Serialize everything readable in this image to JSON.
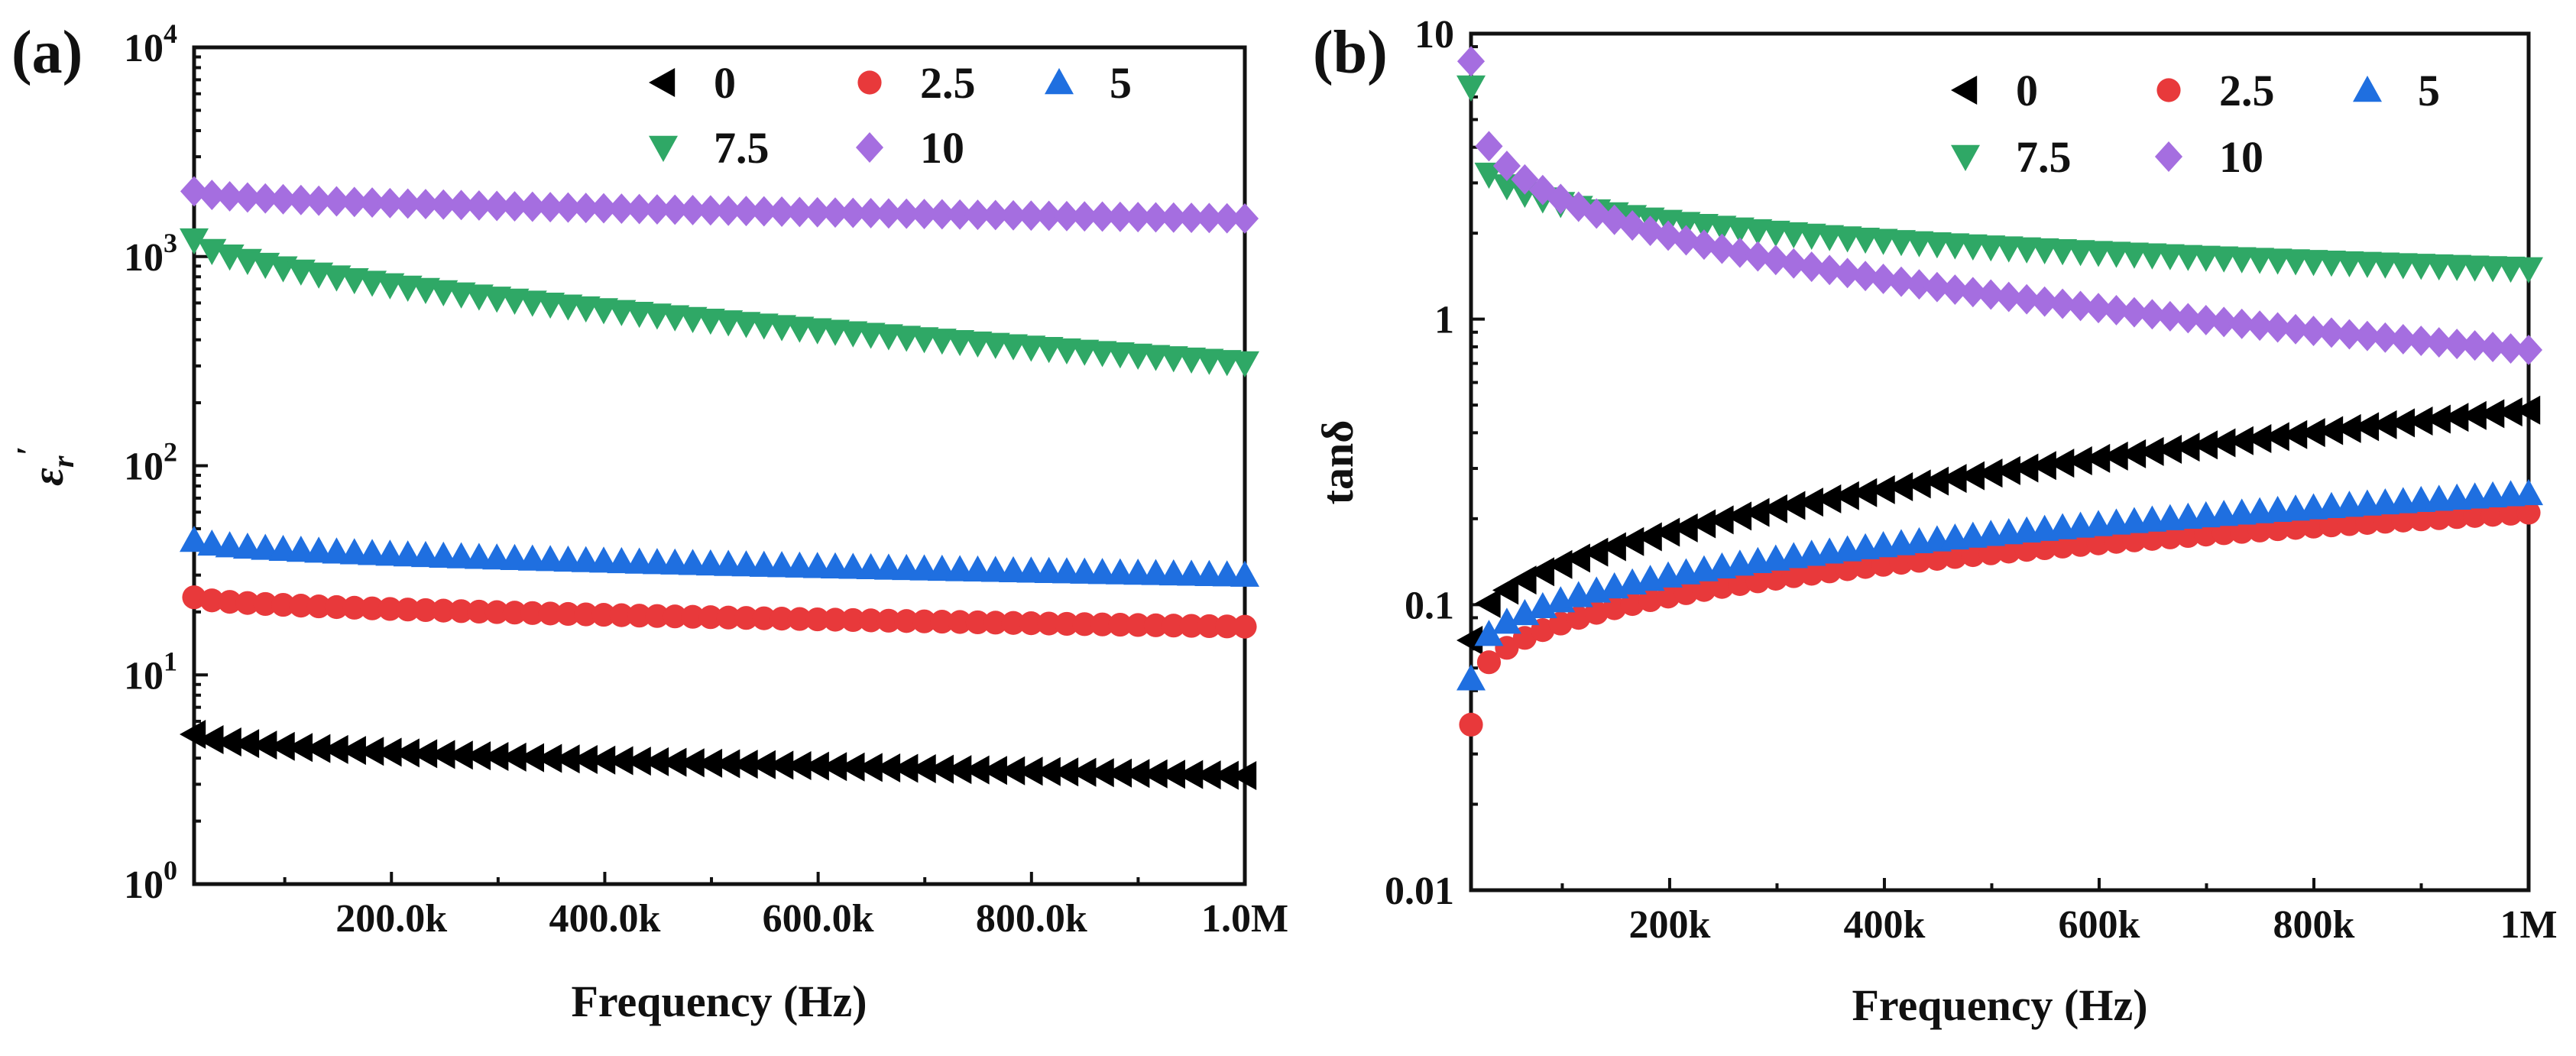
{
  "chart_data": [
    {
      "panel": "(a)",
      "type": "scatter",
      "yscale": "log",
      "xlabel": "Frequency (Hz)",
      "ylabel": "ε′r",
      "ylabel_main": "ε",
      "ylabel_sub": "r",
      "ylabel_prime": "′",
      "xlim": [
        15000,
        1000000
      ],
      "ylim": [
        1,
        10000
      ],
      "xticks": [
        {
          "value": 200000,
          "label": "200.0k"
        },
        {
          "value": 400000,
          "label": "400.0k"
        },
        {
          "value": 600000,
          "label": "600.0k"
        },
        {
          "value": 800000,
          "label": "800.0k"
        },
        {
          "value": 1000000,
          "label": "1.0M"
        }
      ],
      "yticks": [
        {
          "value": 1,
          "base": "10",
          "exp": "0"
        },
        {
          "value": 10,
          "base": "10",
          "exp": "1"
        },
        {
          "value": 100,
          "base": "10",
          "exp": "2"
        },
        {
          "value": 1000,
          "base": "10",
          "exp": "3"
        },
        {
          "value": 10000,
          "base": "10",
          "exp": "4"
        }
      ],
      "n_points": 60,
      "legend_position": "top-right",
      "series": [
        {
          "name": "0",
          "marker": "triangle-left",
          "color": "#000000",
          "start": 5.2,
          "end": 3.3,
          "curve": 0.5
        },
        {
          "name": "2.5",
          "marker": "circle",
          "color": "#e8393b",
          "start": 23.5,
          "end": 17.0,
          "curve": 0.55
        },
        {
          "name": "5",
          "marker": "triangle-up",
          "color": "#1f6fe0",
          "start": 44.0,
          "end": 30.0,
          "curve": 0.55
        },
        {
          "name": "7.5",
          "marker": "triangle-down",
          "color": "#2fa866",
          "start": 1200,
          "end": 310,
          "curve": 0.6
        },
        {
          "name": "10",
          "marker": "diamond",
          "color": "#a56ee0",
          "start": 2050,
          "end": 1520,
          "curve": 0.5
        }
      ]
    },
    {
      "panel": "(b)",
      "type": "scatter",
      "yscale": "log",
      "xlabel": "Frequency (Hz)",
      "ylabel": "tanδ",
      "xlim": [
        15000,
        1000000
      ],
      "ylim": [
        0.01,
        10
      ],
      "xticks": [
        {
          "value": 200000,
          "label": "200k"
        },
        {
          "value": 400000,
          "label": "400k"
        },
        {
          "value": 600000,
          "label": "600k"
        },
        {
          "value": 800000,
          "label": "800k"
        },
        {
          "value": 1000000,
          "label": "1M"
        }
      ],
      "yticks": [
        {
          "value": 0.01,
          "label": "0.01"
        },
        {
          "value": 0.1,
          "label": "0.1"
        },
        {
          "value": 1,
          "label": "1"
        },
        {
          "value": 10,
          "label": "10"
        }
      ],
      "n_points": 60,
      "legend_position": "top-right",
      "series": [
        {
          "name": "0",
          "marker": "triangle-left",
          "color": "#000000",
          "start": 0.075,
          "end": 0.48,
          "curve": 0.45
        },
        {
          "name": "2.5",
          "marker": "circle",
          "color": "#e8393b",
          "start": 0.038,
          "end": 0.21,
          "curve": 0.3
        },
        {
          "name": "5",
          "marker": "triangle-up",
          "color": "#1f6fe0",
          "start": 0.055,
          "end": 0.245,
          "curve": 0.35
        },
        {
          "name": "7.5",
          "marker": "triangle-down",
          "color": "#2fa866",
          "start": 6.5,
          "end": 1.5,
          "curve": 0.18
        },
        {
          "name": "10",
          "marker": "diamond",
          "color": "#a56ee0",
          "start": 8.0,
          "end": 0.78,
          "curve": 0.3
        }
      ]
    }
  ]
}
